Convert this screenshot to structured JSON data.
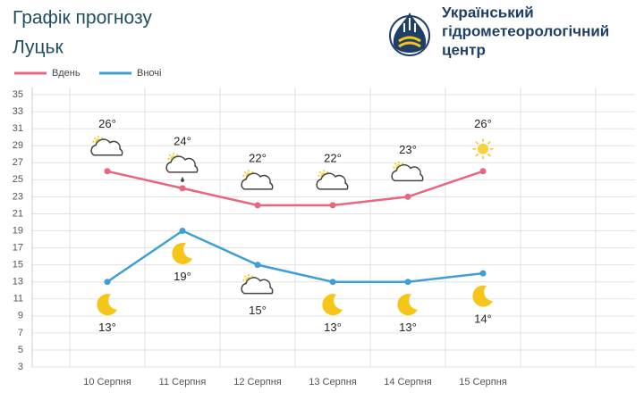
{
  "organization": [
    "Український",
    "гідрометеорологічний",
    "центр"
  ],
  "chart_data": {
    "type": "line",
    "title": "Графік прогнозу",
    "subtitle": "Луцьк",
    "categories": [
      "10 Серпня",
      "11 Серпня",
      "12 Серпня",
      "13 Серпня",
      "14 Серпня",
      "15 Серпня"
    ],
    "series": [
      {
        "name": "Вдень",
        "color": "#e8667f",
        "values": [
          26,
          24,
          22,
          22,
          23,
          26
        ],
        "value_labels": [
          "26°",
          "24°",
          "22°",
          "22°",
          "23°",
          "26°"
        ]
      },
      {
        "name": "Вночі",
        "color": "#3d9fd6",
        "values": [
          13,
          19,
          15,
          13,
          13,
          14
        ],
        "value_labels": [
          "13°",
          "19°",
          "15°",
          "13°",
          "13°",
          "14°"
        ]
      }
    ],
    "ylim": [
      3,
      35
    ],
    "yticks": [
      3,
      5,
      7,
      9,
      11,
      13,
      15,
      17,
      19,
      21,
      23,
      25,
      27,
      29,
      31,
      33,
      35
    ],
    "grid": true
  }
}
